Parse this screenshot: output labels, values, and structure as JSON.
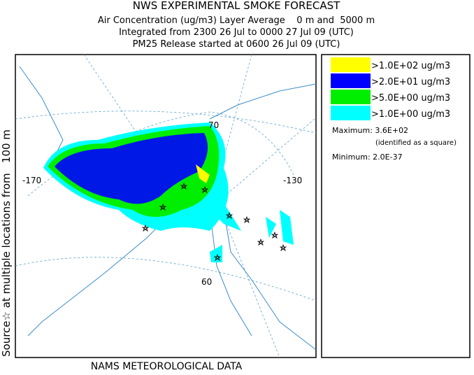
{
  "header": {
    "title": "NWS EXPERIMENTAL SMOKE FORECAST",
    "lines": [
      "Air Concentration (ug/m3) Layer Average    0 m and  5000 m",
      "Integrated from 2300 26 Jul to 0000 27 Jul 09 (UTC)",
      "PM25 Release started at 0600 26 Jul 09 (UTC)"
    ]
  },
  "side_label": "Source☆ at multiple locations from   100 m",
  "footer": "NAMS METEOROLOGICAL DATA",
  "map_labels": [
    "-170",
    "-130",
    "70",
    "60"
  ],
  "legend": {
    "items": [
      {
        "label": ">1.0E+02 ug/m3",
        "color": "#ffff00"
      },
      {
        "label": ">2.0E+01 ug/m3",
        "color": "#0000ff"
      },
      {
        "label": ">5.0E+00 ug/m3",
        "color": "#00ee00"
      },
      {
        "label": ">1.0E+00 ug/m3",
        "color": "#00ffff"
      }
    ],
    "maximum": "Maximum: 3.6E+02",
    "maximum_note": "(identified as a square)",
    "minimum": "Minimum: 2.0E-37"
  }
}
